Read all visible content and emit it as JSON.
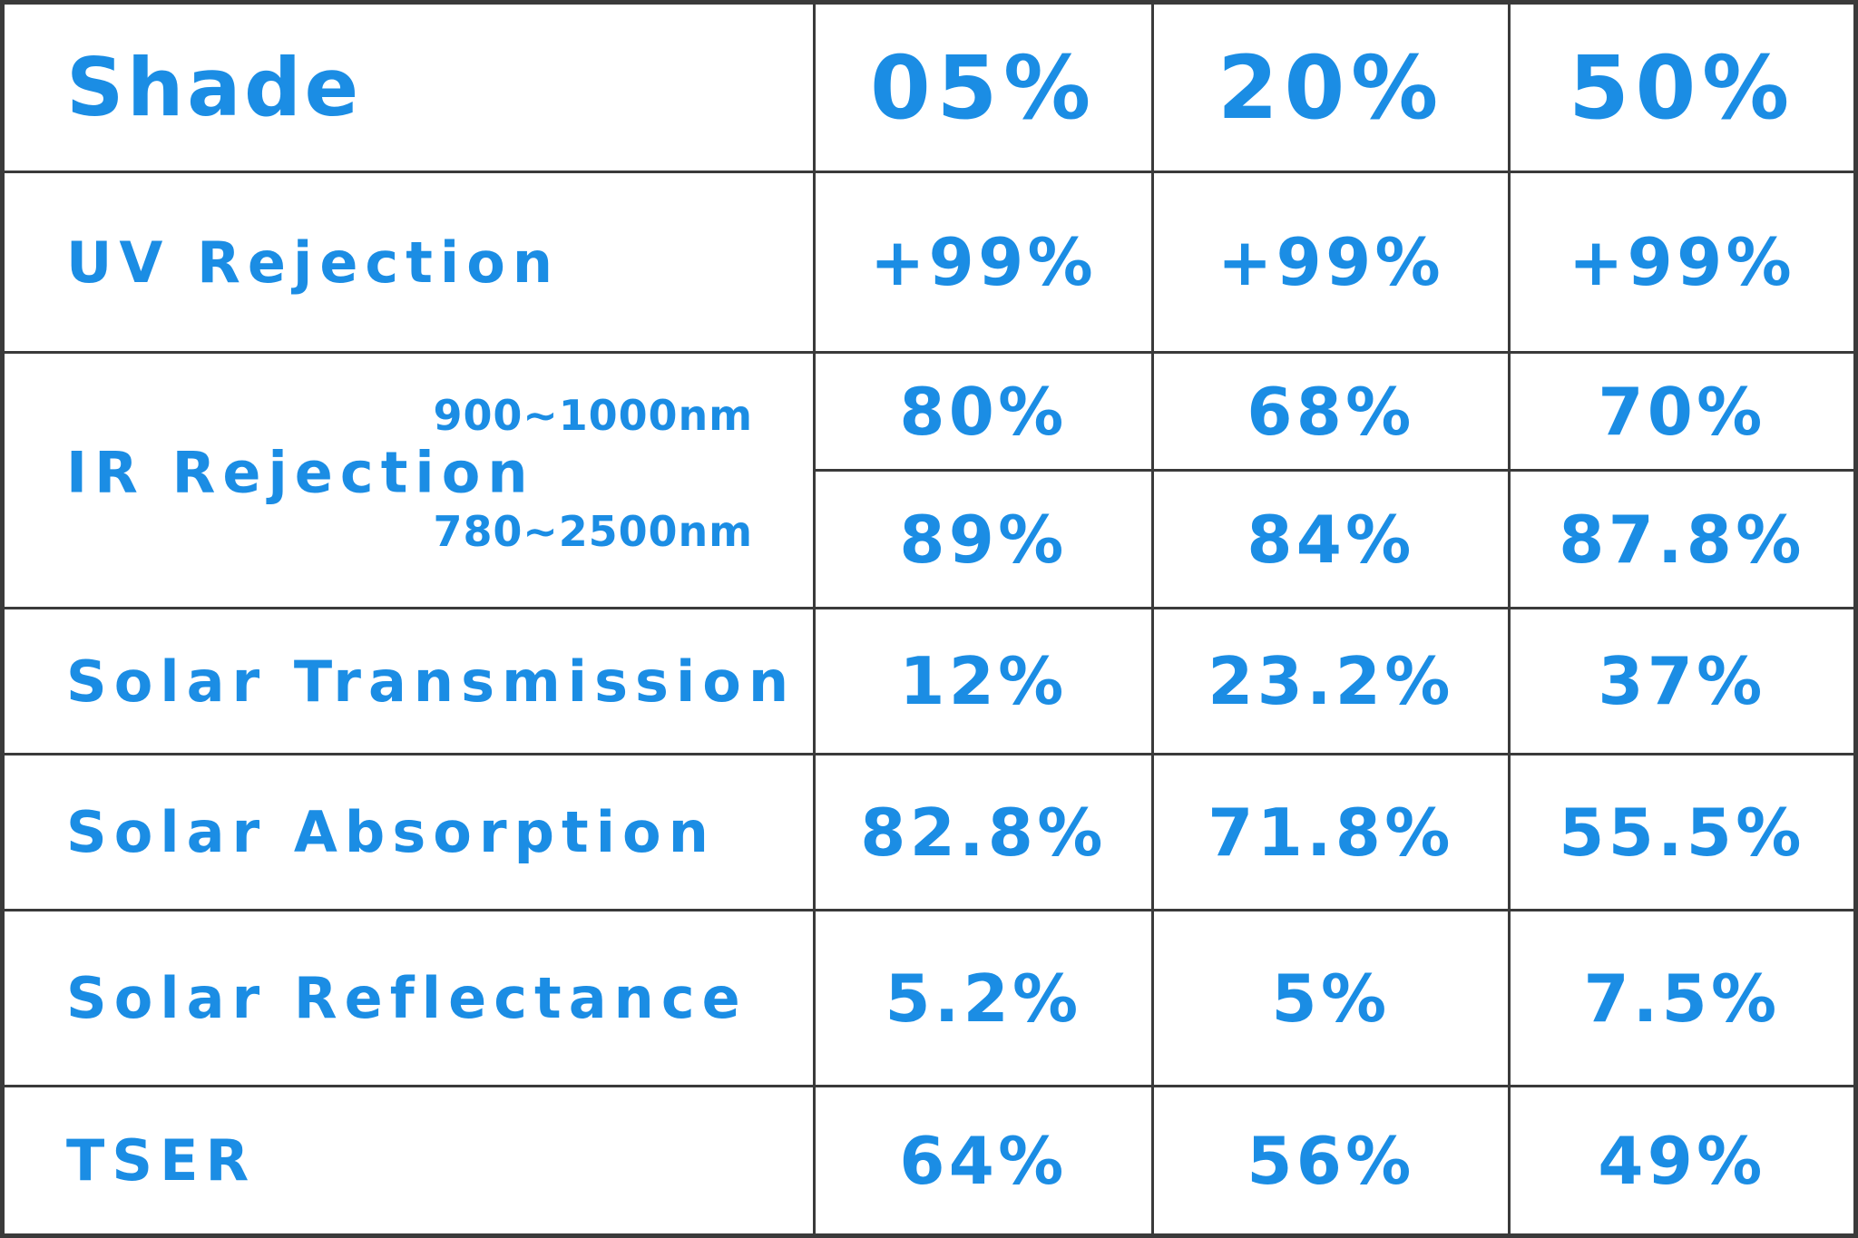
{
  "table": {
    "header": {
      "label": "Shade",
      "values": [
        "05%",
        "20%",
        "50%"
      ]
    },
    "rows": [
      {
        "label": "UV Rejection",
        "values": [
          "+99%",
          "+99%",
          "+99%"
        ]
      },
      {
        "label": "IR Rejection",
        "sub_rows": [
          {
            "range_label": "900~1000nm",
            "values": [
              "80%",
              "68%",
              "70%"
            ]
          },
          {
            "range_label": "780~2500nm",
            "values": [
              "89%",
              "84%",
              "87.8%"
            ]
          }
        ]
      },
      {
        "label": "Solar Transmission",
        "values": [
          "12%",
          "23.2%",
          "37%"
        ]
      },
      {
        "label": "Solar Absorption",
        "values": [
          "82.8%",
          "71.8%",
          "55.5%"
        ]
      },
      {
        "label": "Solar Reflectance",
        "values": [
          "5.2%",
          "5%",
          "7.5%"
        ]
      },
      {
        "label": "TSER",
        "values": [
          "64%",
          "56%",
          "49%"
        ]
      }
    ]
  },
  "colors": {
    "accent_blue": "#1b8de4",
    "grid_border": "#3a3a3a",
    "background": "#ffffff"
  },
  "chart_data": {
    "type": "table",
    "title": "Window film shade performance specifications",
    "columns": [
      "Shade",
      "05%",
      "20%",
      "50%"
    ],
    "rows": [
      {
        "metric": "UV Rejection",
        "values": [
          "+99%",
          "+99%",
          "+99%"
        ]
      },
      {
        "metric": "IR Rejection (900~1000nm)",
        "values": [
          "80%",
          "68%",
          "70%"
        ]
      },
      {
        "metric": "IR Rejection (780~2500nm)",
        "values": [
          "89%",
          "84%",
          "87.8%"
        ]
      },
      {
        "metric": "Solar Transmission",
        "values": [
          "12%",
          "23.2%",
          "37%"
        ]
      },
      {
        "metric": "Solar Absorption",
        "values": [
          "82.8%",
          "71.8%",
          "55.5%"
        ]
      },
      {
        "metric": "Solar Reflectance",
        "values": [
          "5.2%",
          "5%",
          "7.5%"
        ]
      },
      {
        "metric": "TSER",
        "values": [
          "64%",
          "56%",
          "49%"
        ]
      }
    ]
  }
}
